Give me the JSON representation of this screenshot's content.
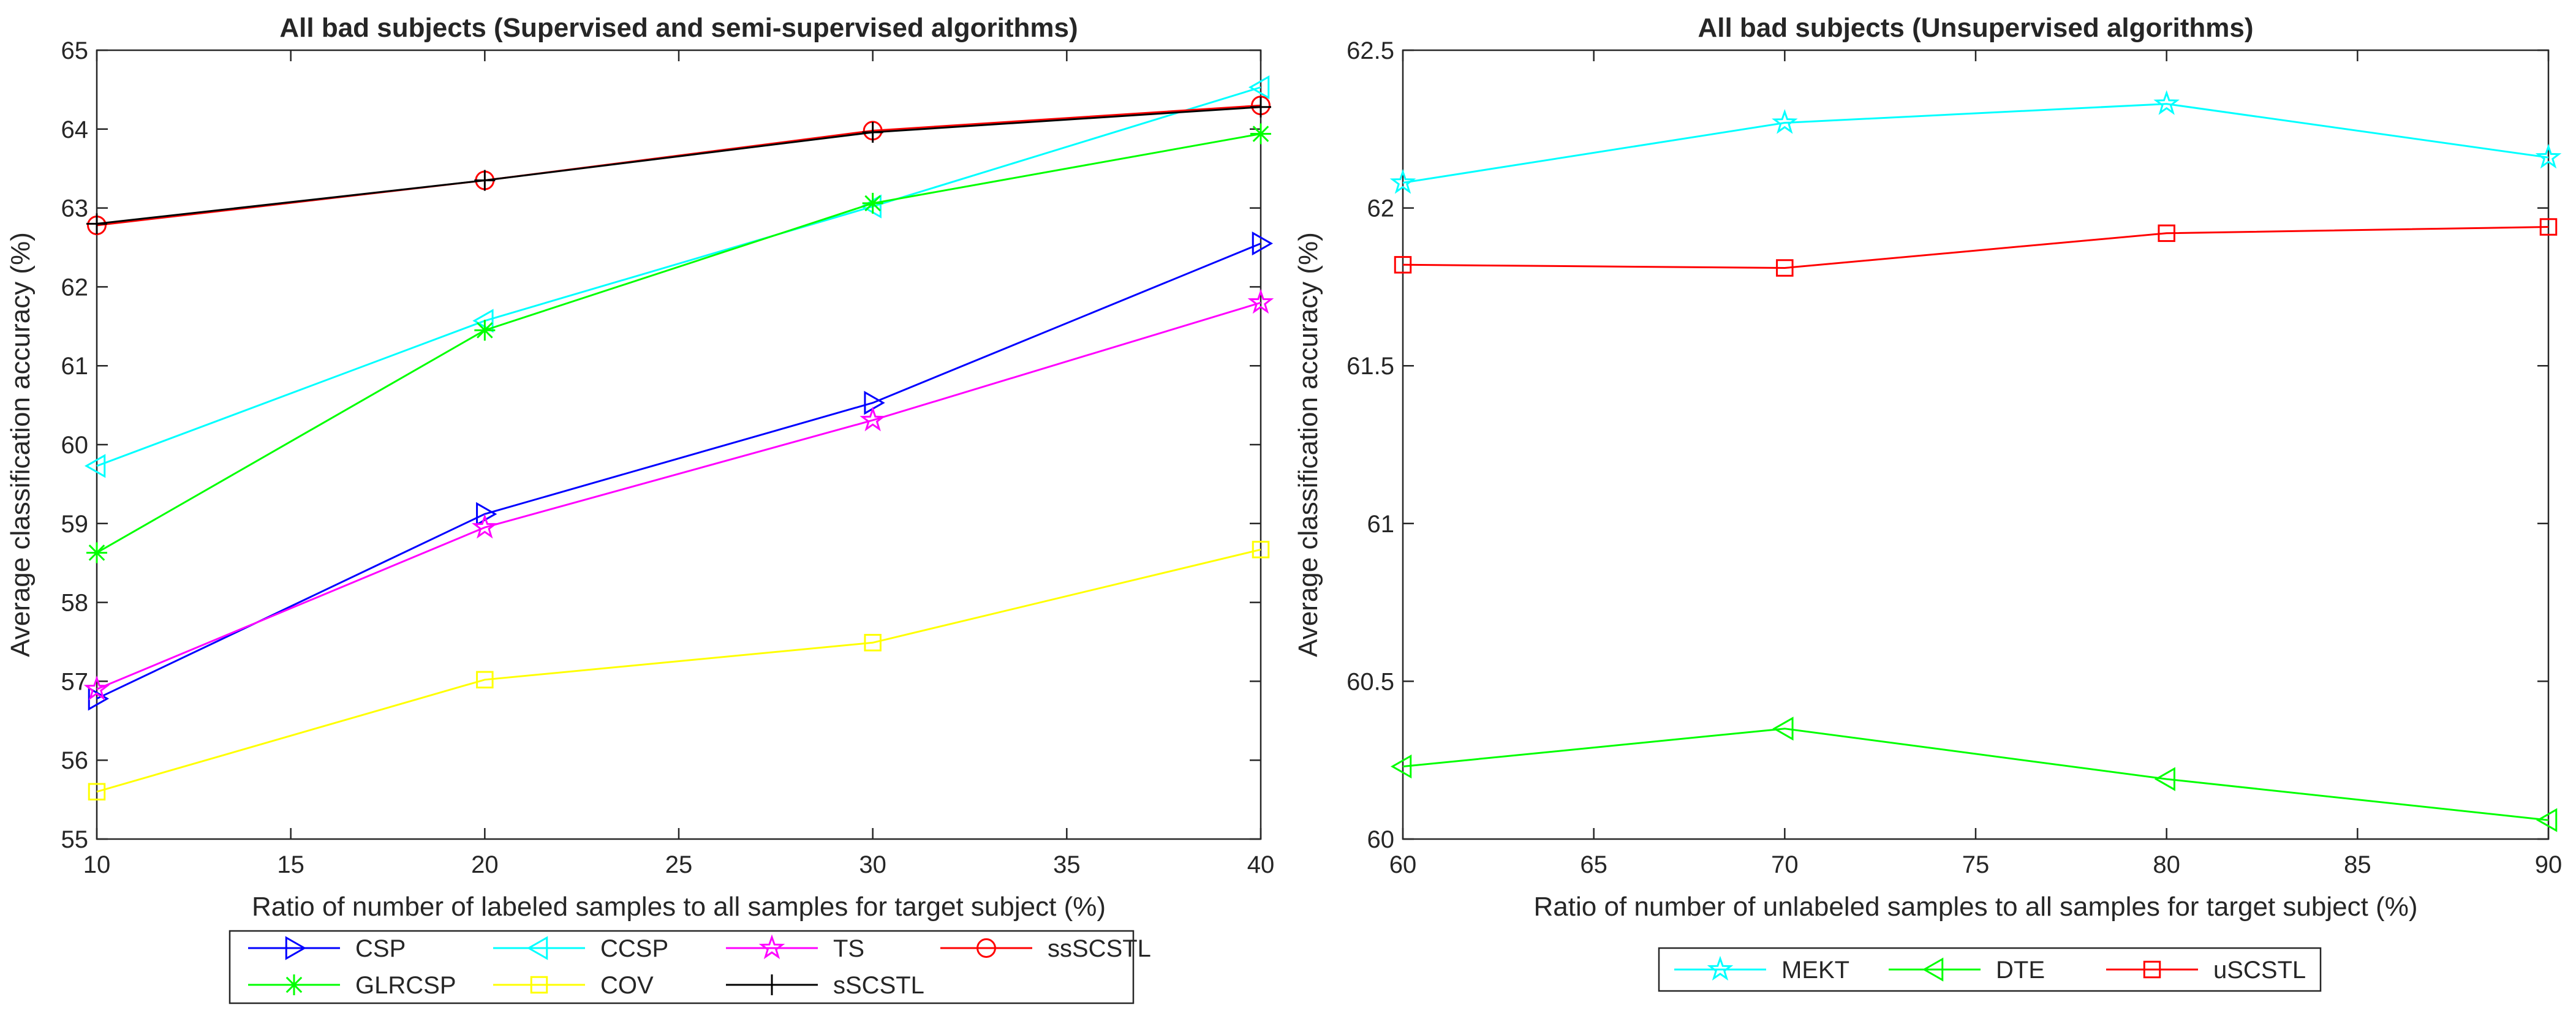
{
  "chart_data": [
    {
      "type": "line",
      "title": "All bad subjects (Supervised and semi-supervised algorithms)",
      "xlabel": "Ratio of number of labeled samples to all samples for target subject (%)",
      "ylabel": "Average classification accuracy (%)",
      "x": [
        10,
        20,
        30,
        40
      ],
      "xlim": [
        10,
        40
      ],
      "ylim": [
        55,
        65
      ],
      "xticks": [
        10,
        15,
        20,
        25,
        30,
        35,
        40
      ],
      "yticks": [
        55,
        56,
        57,
        58,
        59,
        60,
        61,
        62,
        63,
        64,
        65
      ],
      "legend_position": "bottom-outside",
      "series": [
        {
          "name": "CSP",
          "color": "#0000ff",
          "marker": "triangle-right",
          "values": [
            56.78,
            59.12,
            60.53,
            62.55
          ]
        },
        {
          "name": "CCSP",
          "color": "#00ffff",
          "marker": "triangle-left",
          "values": [
            59.73,
            61.57,
            63.02,
            64.53
          ]
        },
        {
          "name": "TS",
          "color": "#ff00ff",
          "marker": "pentagram",
          "values": [
            56.9,
            58.95,
            60.31,
            61.8
          ]
        },
        {
          "name": "ssSCSTL",
          "color": "#ff0000",
          "marker": "circle",
          "values": [
            62.78,
            63.35,
            63.98,
            64.3
          ]
        },
        {
          "name": "GLRCSP",
          "color": "#00ff00",
          "marker": "asterisk",
          "values": [
            58.63,
            61.45,
            63.06,
            63.94
          ]
        },
        {
          "name": "COV",
          "color": "#ffff00",
          "marker": "square",
          "values": [
            55.6,
            57.02,
            57.49,
            58.67
          ]
        },
        {
          "name": "sSCSTL",
          "color": "#000000",
          "marker": "plus",
          "values": [
            62.8,
            63.35,
            63.96,
            64.28
          ]
        }
      ]
    },
    {
      "type": "line",
      "title": "All bad subjects (Unsupervised algorithms)",
      "xlabel": "Ratio of number of unlabeled samples to all samples for target subject (%)",
      "ylabel": "Average classification accuracy (%)",
      "x": [
        60,
        70,
        80,
        90
      ],
      "xlim": [
        60,
        90
      ],
      "ylim": [
        60,
        62.5
      ],
      "xticks": [
        60,
        65,
        70,
        75,
        80,
        85,
        90
      ],
      "yticks": [
        60,
        60.5,
        61,
        61.5,
        62,
        62.5
      ],
      "legend_position": "bottom-outside",
      "series": [
        {
          "name": "MEKT",
          "color": "#00ffff",
          "marker": "pentagram",
          "values": [
            62.08,
            62.27,
            62.33,
            62.16
          ]
        },
        {
          "name": "DTE",
          "color": "#00ff00",
          "marker": "triangle-left",
          "values": [
            60.23,
            60.35,
            60.19,
            60.06
          ]
        },
        {
          "name": "uSCSTL",
          "color": "#ff0000",
          "marker": "square",
          "values": [
            61.82,
            61.81,
            61.92,
            61.94
          ]
        }
      ]
    }
  ]
}
